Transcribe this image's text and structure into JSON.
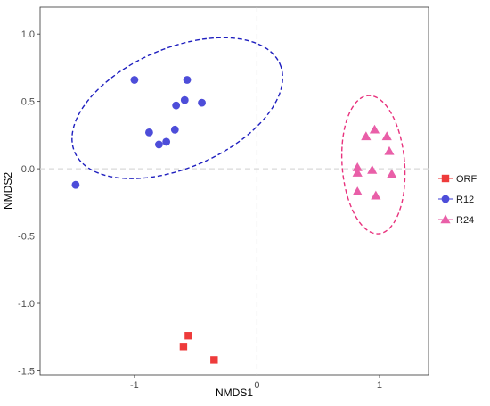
{
  "chart_data": {
    "type": "scatter",
    "xlabel": "NMDS1",
    "ylabel": "NMDS2",
    "xlim": [
      -1.77,
      1.4
    ],
    "ylim": [
      -1.53,
      1.2
    ],
    "x_ticks": [
      -1,
      0,
      1
    ],
    "x_tick_labels": [
      "-1",
      "0",
      "1"
    ],
    "y_ticks": [
      -1.5,
      -1.0,
      -0.5,
      0.0,
      0.5,
      1.0
    ],
    "y_tick_labels": [
      "-1.5",
      "-1.0",
      "-0.5",
      "0.0",
      "0.5",
      "1.0"
    ],
    "reference_lines": {
      "x": 0,
      "y": 0,
      "style": "dashed",
      "color": "#d9d9d9"
    },
    "grid": false,
    "legend_position": "right",
    "series": [
      {
        "name": "ORF",
        "marker": "square",
        "color": "#ee3b3b",
        "points": [
          {
            "x": -0.56,
            "y": -1.24
          },
          {
            "x": -0.6,
            "y": -1.32
          },
          {
            "x": -0.35,
            "y": -1.42
          }
        ]
      },
      {
        "name": "R12",
        "marker": "circle",
        "color": "#4d4dd9",
        "ellipse": {
          "cx": -0.65,
          "cy": 0.45,
          "rx": 0.9,
          "ry": 0.45,
          "angle_deg": 20,
          "color": "#1f1fbf"
        },
        "points": [
          {
            "x": -1.48,
            "y": -0.12
          },
          {
            "x": -1.0,
            "y": 0.66
          },
          {
            "x": -0.57,
            "y": 0.66
          },
          {
            "x": -0.59,
            "y": 0.51
          },
          {
            "x": -0.66,
            "y": 0.47
          },
          {
            "x": -0.45,
            "y": 0.49
          },
          {
            "x": -0.88,
            "y": 0.27
          },
          {
            "x": -0.67,
            "y": 0.29
          },
          {
            "x": -0.74,
            "y": 0.2
          },
          {
            "x": -0.8,
            "y": 0.18
          }
        ]
      },
      {
        "name": "R24",
        "marker": "triangle",
        "color": "#e95fa8",
        "ellipse": {
          "cx": 0.95,
          "cy": 0.03,
          "rx": 0.255,
          "ry": 0.515,
          "angle_deg": 5,
          "color": "#e8327d"
        },
        "points": [
          {
            "x": 0.96,
            "y": 0.29
          },
          {
            "x": 0.89,
            "y": 0.24
          },
          {
            "x": 1.06,
            "y": 0.24
          },
          {
            "x": 1.08,
            "y": 0.13
          },
          {
            "x": 0.82,
            "y": 0.01
          },
          {
            "x": 0.82,
            "y": -0.03
          },
          {
            "x": 0.94,
            "y": -0.01
          },
          {
            "x": 1.1,
            "y": -0.04
          },
          {
            "x": 0.82,
            "y": -0.17
          },
          {
            "x": 0.97,
            "y": -0.2
          }
        ]
      }
    ]
  }
}
